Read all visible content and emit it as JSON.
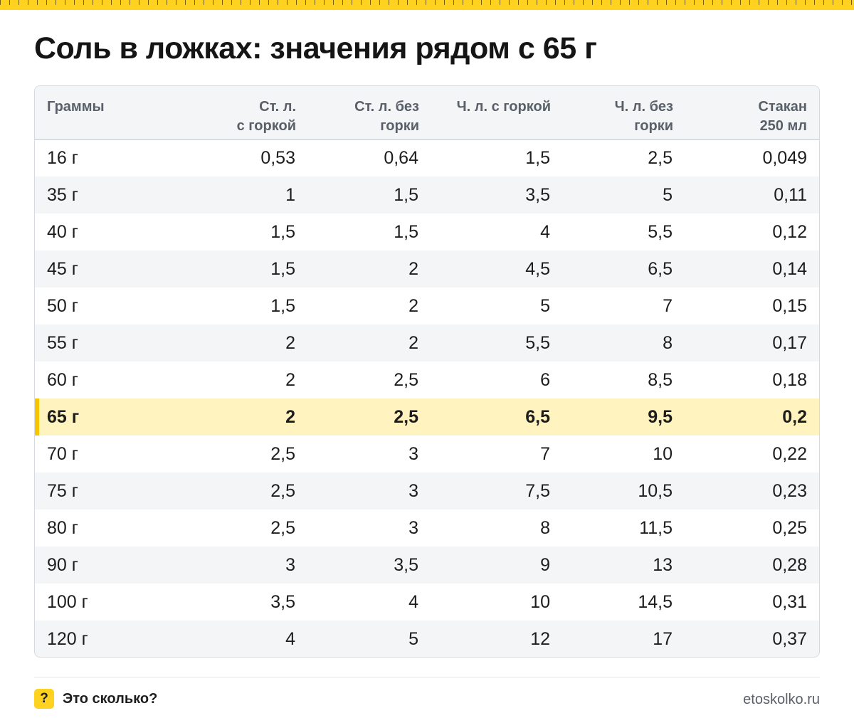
{
  "title": "Соль в ложках: значения рядом с 65 г",
  "table": {
    "headers": [
      [
        "Граммы",
        ""
      ],
      [
        "Ст. л.",
        "с горкой"
      ],
      [
        "Ст. л. без",
        "горки"
      ],
      [
        "Ч. л. с горкой",
        ""
      ],
      [
        "Ч. л. без",
        "горки"
      ],
      [
        "Стакан",
        "250 мл"
      ]
    ],
    "highlight_row": "65 г",
    "rows": [
      [
        "16 г",
        "0,53",
        "0,64",
        "1,5",
        "2,5",
        "0,049"
      ],
      [
        "35 г",
        "1",
        "1,5",
        "3,5",
        "5",
        "0,11"
      ],
      [
        "40 г",
        "1,5",
        "1,5",
        "4",
        "5,5",
        "0,12"
      ],
      [
        "45 г",
        "1,5",
        "2",
        "4,5",
        "6,5",
        "0,14"
      ],
      [
        "50 г",
        "1,5",
        "2",
        "5",
        "7",
        "0,15"
      ],
      [
        "55 г",
        "2",
        "2",
        "5,5",
        "8",
        "0,17"
      ],
      [
        "60 г",
        "2",
        "2,5",
        "6",
        "8,5",
        "0,18"
      ],
      [
        "65 г",
        "2",
        "2,5",
        "6,5",
        "9,5",
        "0,2"
      ],
      [
        "70 г",
        "2,5",
        "3",
        "7",
        "10",
        "0,22"
      ],
      [
        "75 г",
        "2,5",
        "3",
        "7,5",
        "10,5",
        "0,23"
      ],
      [
        "80 г",
        "2,5",
        "3",
        "8",
        "11,5",
        "0,25"
      ],
      [
        "90 г",
        "3",
        "3,5",
        "9",
        "13",
        "0,28"
      ],
      [
        "100 г",
        "3,5",
        "4",
        "10",
        "14,5",
        "0,31"
      ],
      [
        "120 г",
        "4",
        "5",
        "12",
        "17",
        "0,37"
      ]
    ]
  },
  "footer": {
    "badge": "?",
    "brand": "Это сколько?",
    "site": "etoskolko.ru"
  },
  "colors": {
    "accent_yellow": "#ffd21f",
    "highlight_row_bg": "#fff3c0",
    "highlight_marker": "#f7c500",
    "zebra_bg": "#f4f5f7",
    "header_text": "#596069"
  },
  "icons": {
    "top_ruler": "measuring-tape-strip",
    "badge": "question-mark-badge"
  }
}
